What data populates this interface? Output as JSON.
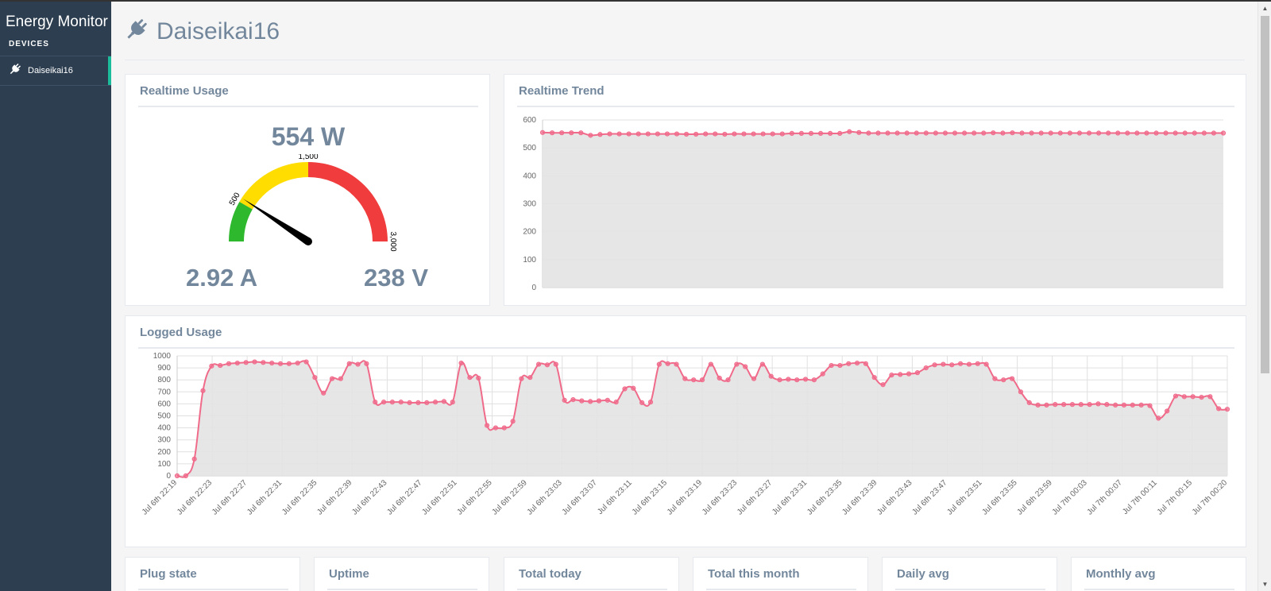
{
  "sidebar": {
    "brand": "Energy Monitor",
    "section_heading": "DEVICES",
    "items": [
      {
        "label": "Daiseikai16",
        "icon": "plug-icon"
      }
    ]
  },
  "page": {
    "title": "Daiseikai16",
    "icon": "plug-icon"
  },
  "realtime_usage": {
    "title": "Realtime Usage",
    "power": "554 W",
    "current": "2.92 A",
    "voltage": "238 V",
    "gauge": {
      "min": 0,
      "max": 3000,
      "value": 554,
      "ticks": [
        "500",
        "1,500",
        "3,000"
      ],
      "bands": [
        {
          "from": 0,
          "to": 500,
          "color": "#2db82d"
        },
        {
          "from": 500,
          "to": 1500,
          "color": "#ffdd00"
        },
        {
          "from": 1500,
          "to": 3000,
          "color": "#f03c3c"
        }
      ]
    }
  },
  "realtime_trend": {
    "title": "Realtime Trend"
  },
  "logged_usage": {
    "title": "Logged Usage"
  },
  "stats": [
    {
      "title": "Plug state"
    },
    {
      "title": "Uptime"
    },
    {
      "title": "Total today"
    },
    {
      "title": "Total this month"
    },
    {
      "title": "Daily avg"
    },
    {
      "title": "Monthly avg"
    }
  ],
  "colors": {
    "line": "#f06a8a",
    "fill": "#e3e3e3",
    "sidebar": "#2c3e50",
    "accent": "#1abc9c",
    "heading": "#73879c"
  },
  "chart_data": [
    {
      "type": "area",
      "title": "Realtime Trend",
      "ylim": [
        0,
        600
      ],
      "y_ticks": [
        0,
        100,
        200,
        300,
        400,
        500,
        600
      ],
      "grid": true,
      "values": [
        555,
        554,
        554,
        554,
        554,
        545,
        548,
        550,
        550,
        550,
        550,
        550,
        550,
        550,
        550,
        549,
        549,
        550,
        550,
        549,
        550,
        550,
        550,
        550,
        550,
        550,
        552,
        552,
        552,
        552,
        552,
        552,
        558,
        555,
        553,
        553,
        553,
        553,
        553,
        553,
        553,
        553,
        553,
        553,
        553,
        553,
        553,
        554,
        553,
        554,
        553,
        553,
        553,
        553,
        553,
        553,
        553,
        553,
        553,
        553,
        553,
        553,
        553,
        553,
        553,
        553,
        553,
        553,
        553,
        553,
        553,
        553
      ]
    },
    {
      "type": "area",
      "title": "Logged Usage",
      "ylim": [
        0,
        1000
      ],
      "y_ticks": [
        0,
        100,
        200,
        300,
        400,
        500,
        600,
        700,
        800,
        900,
        1000
      ],
      "grid": true,
      "x_tick_labels": [
        "Jul 6th 22:19",
        "Jul 6th 22:23",
        "Jul 6th 22:27",
        "Jul 6th 22:31",
        "Jul 6th 22:35",
        "Jul 6th 22:39",
        "Jul 6th 22:43",
        "Jul 6th 22:47",
        "Jul 6th 22:51",
        "Jul 6th 22:55",
        "Jul 6th 22:59",
        "Jul 6th 23:03",
        "Jul 6th 23:07",
        "Jul 6th 23:11",
        "Jul 6th 23:15",
        "Jul 6th 23:19",
        "Jul 6th 23:23",
        "Jul 6th 23:27",
        "Jul 6th 23:31",
        "Jul 6th 23:35",
        "Jul 6th 23:39",
        "Jul 6th 23:43",
        "Jul 6th 23:47",
        "Jul 6th 23:51",
        "Jul 6th 23:55",
        "Jul 6th 23:59",
        "Jul 7th 00:03",
        "Jul 7th 00:07",
        "Jul 7th 00:11",
        "Jul 7th 00:15",
        "Jul 7th 00:20"
      ],
      "values": [
        0,
        0,
        140,
        710,
        915,
        920,
        935,
        940,
        945,
        950,
        945,
        940,
        935,
        935,
        940,
        950,
        820,
        690,
        810,
        810,
        935,
        930,
        935,
        615,
        615,
        615,
        615,
        610,
        610,
        610,
        615,
        620,
        615,
        940,
        820,
        815,
        420,
        400,
        400,
        455,
        810,
        820,
        930,
        925,
        930,
        630,
        635,
        625,
        620,
        625,
        630,
        615,
        725,
        730,
        610,
        615,
        930,
        935,
        930,
        810,
        800,
        800,
        930,
        815,
        800,
        930,
        910,
        810,
        930,
        830,
        800,
        805,
        800,
        805,
        800,
        850,
        920,
        920,
        935,
        940,
        935,
        820,
        760,
        840,
        845,
        850,
        860,
        900,
        925,
        930,
        925,
        935,
        930,
        935,
        930,
        810,
        800,
        810,
        700,
        610,
        590,
        590,
        595,
        595,
        595,
        595,
        595,
        600,
        595,
        590,
        590,
        590,
        590,
        585,
        480,
        540,
        665,
        660,
        660,
        655,
        660,
        560,
        555
      ]
    }
  ]
}
